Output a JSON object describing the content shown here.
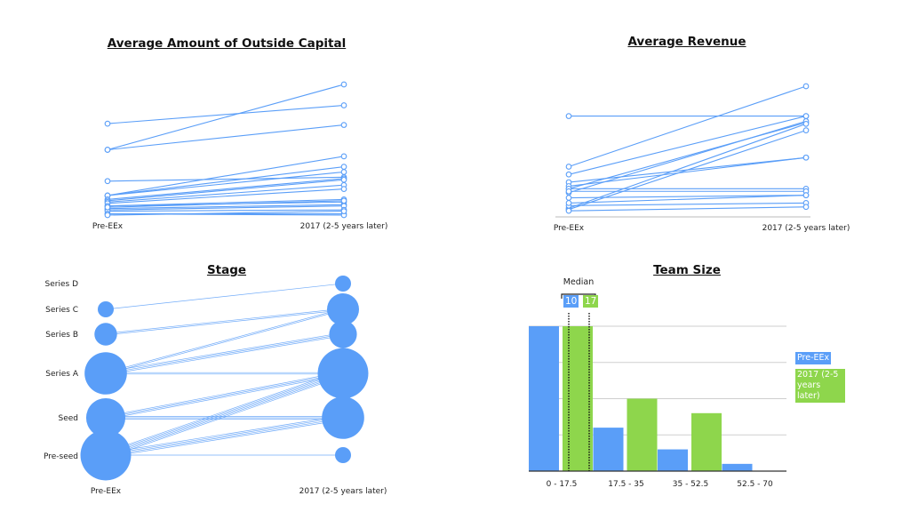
{
  "colors": {
    "blue": "#5a9ef8",
    "green": "#8ed64c",
    "grid": "#cfcfcf"
  },
  "chart_data": [
    {
      "type": "line",
      "title": "Average Amount of Outside Capital",
      "x": [
        "Pre-EEx",
        "2017 (2-5 years later)"
      ],
      "ylabel": "",
      "units": "relative (no axis shown)",
      "series": [
        [
          70,
          84
        ],
        [
          50,
          100
        ],
        [
          50,
          69
        ],
        [
          26,
          29
        ],
        [
          15,
          45
        ],
        [
          15,
          37
        ],
        [
          15,
          33
        ],
        [
          12,
          28
        ],
        [
          11,
          27
        ],
        [
          10,
          23
        ],
        [
          9,
          20
        ],
        [
          7,
          12
        ],
        [
          7,
          10
        ],
        [
          5,
          8
        ],
        [
          4,
          7
        ],
        [
          3,
          4
        ],
        [
          1,
          1
        ],
        [
          1,
          0
        ],
        [
          0,
          3
        ],
        [
          6,
          11
        ]
      ]
    },
    {
      "type": "line",
      "title": "Average Revenue",
      "x": [
        "Pre-EEx",
        "2017 (2-5 years later)"
      ],
      "units": "relative (no axis shown)",
      "series": [
        [
          77,
          77
        ],
        [
          38,
          100
        ],
        [
          32,
          77
        ],
        [
          21,
          72
        ],
        [
          18,
          73
        ],
        [
          26,
          45
        ],
        [
          23,
          45
        ],
        [
          6,
          71
        ],
        [
          5,
          66
        ],
        [
          21,
          21
        ],
        [
          19,
          19
        ],
        [
          14,
          16
        ],
        [
          8,
          10
        ],
        [
          4,
          7
        ],
        [
          10,
          16
        ]
      ]
    },
    {
      "type": "scatter",
      "title": "Stage",
      "x": [
        "Pre-EEx",
        "2017 (2-5 years later)"
      ],
      "stages": [
        "Series D",
        "Series C",
        "Series B",
        "Series A",
        "Seed",
        "Pre-seed"
      ],
      "pre_counts": [
        0,
        1,
        2,
        7,
        6,
        10
      ],
      "post_counts": [
        1,
        4,
        3,
        10,
        7,
        1
      ],
      "flows": [
        {
          "from": "Series C",
          "to": "Series D",
          "n": 1
        },
        {
          "from": "Series B",
          "to": "Series C",
          "n": 2
        },
        {
          "from": "Series A",
          "to": "Series C",
          "n": 2
        },
        {
          "from": "Series A",
          "to": "Series B",
          "n": 3
        },
        {
          "from": "Series A",
          "to": "Series A",
          "n": 2
        },
        {
          "from": "Seed",
          "to": "Series A",
          "n": 3
        },
        {
          "from": "Seed",
          "to": "Seed",
          "n": 3
        },
        {
          "from": "Pre-seed",
          "to": "Series A",
          "n": 5
        },
        {
          "from": "Pre-seed",
          "to": "Seed",
          "n": 4
        },
        {
          "from": "Pre-seed",
          "to": "Pre-seed",
          "n": 1
        }
      ]
    },
    {
      "type": "bar",
      "title": "Team Size",
      "categories": [
        "0 - 17.5",
        "17.5 - 35",
        "35 - 52.5",
        "52.5 - 70"
      ],
      "series": [
        {
          "name": "Pre-EEx",
          "values": [
            20,
            6,
            3,
            1
          ]
        },
        {
          "name": "2017 (2-5 years later)",
          "values": [
            20,
            10,
            8,
            0
          ]
        }
      ],
      "ylim": [
        0,
        20
      ],
      "grid": true,
      "legend": "right",
      "median": {
        "label": "Median",
        "values": [
          "10",
          "17"
        ]
      }
    }
  ]
}
